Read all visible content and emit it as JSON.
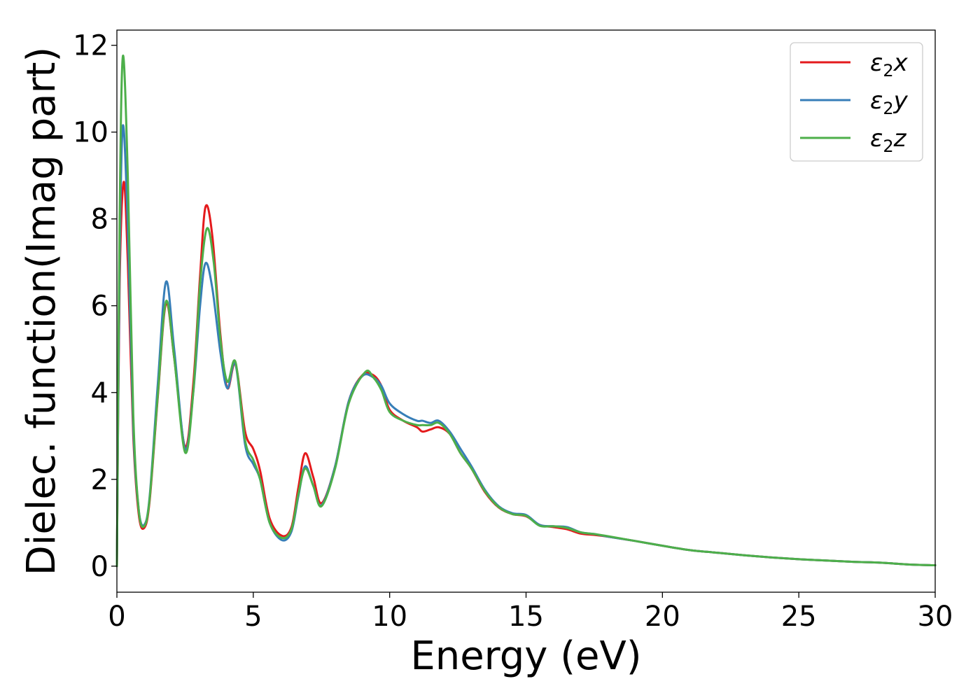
{
  "chart_data": {
    "type": "line",
    "title": "",
    "xlabel": "Energy (eV)",
    "ylabel": "Dielec. function(Imag part)",
    "xlim": [
      0,
      30
    ],
    "ylim": [
      -0.6,
      12.35
    ],
    "xticks": [
      0,
      5,
      10,
      15,
      20,
      25,
      30
    ],
    "yticks": [
      0,
      2,
      4,
      6,
      8,
      10,
      12
    ],
    "grid": false,
    "legend_position": "top-right",
    "series": [
      {
        "name": "ε2x",
        "legend": {
          "base": "ε",
          "sub": "2",
          "var": "x"
        },
        "color": "#e41a1c",
        "x": [
          0,
          0.1,
          0.25,
          0.4,
          0.6,
          0.8,
          1.0,
          1.2,
          1.5,
          1.8,
          2.1,
          2.5,
          2.8,
          3.05,
          3.25,
          3.5,
          3.8,
          4.05,
          4.35,
          4.7,
          5.0,
          5.25,
          5.6,
          6.05,
          6.4,
          6.65,
          6.9,
          7.2,
          7.5,
          8.0,
          8.5,
          9.0,
          9.4,
          9.7,
          10.0,
          10.5,
          11.0,
          11.2,
          11.5,
          11.8,
          12.2,
          12.6,
          13.0,
          13.5,
          14.0,
          14.5,
          15.0,
          15.5,
          16.0,
          16.5,
          17.0,
          17.5,
          18.0,
          19.0,
          20.0,
          21.0,
          22.0,
          23.0,
          24.0,
          25.0,
          26.0,
          27.0,
          28.0,
          29.0,
          30.0
        ],
        "y": [
          0.0,
          6.5,
          8.85,
          7.0,
          3.0,
          1.2,
          0.88,
          1.5,
          3.9,
          6.05,
          4.8,
          2.75,
          4.2,
          6.7,
          8.28,
          7.6,
          5.3,
          4.1,
          4.65,
          3.1,
          2.7,
          2.2,
          1.1,
          0.7,
          0.9,
          1.8,
          2.6,
          2.05,
          1.45,
          2.3,
          3.8,
          4.4,
          4.4,
          4.15,
          3.6,
          3.35,
          3.2,
          3.1,
          3.15,
          3.2,
          3.05,
          2.6,
          2.25,
          1.7,
          1.35,
          1.2,
          1.15,
          0.95,
          0.9,
          0.85,
          0.75,
          0.72,
          0.68,
          0.58,
          0.47,
          0.37,
          0.31,
          0.25,
          0.2,
          0.16,
          0.13,
          0.1,
          0.08,
          0.04,
          0.02
        ]
      },
      {
        "name": "ε2y",
        "legend": {
          "base": "ε",
          "sub": "2",
          "var": "y"
        },
        "color": "#377eb8",
        "x": [
          0,
          0.1,
          0.22,
          0.4,
          0.6,
          0.8,
          1.0,
          1.2,
          1.5,
          1.8,
          2.1,
          2.5,
          2.8,
          3.05,
          3.25,
          3.5,
          3.8,
          4.05,
          4.35,
          4.7,
          5.0,
          5.25,
          5.6,
          6.05,
          6.4,
          6.65,
          6.9,
          7.2,
          7.5,
          8.0,
          8.5,
          9.0,
          9.4,
          9.7,
          10.0,
          10.5,
          11.0,
          11.2,
          11.5,
          11.8,
          12.2,
          12.6,
          13.0,
          13.5,
          14.0,
          14.5,
          15.0,
          15.5,
          16.0,
          16.5,
          17.0,
          17.5,
          18.0,
          19.0,
          20.0,
          21.0,
          22.0,
          23.0,
          24.0,
          25.0,
          26.0,
          27.0,
          28.0,
          29.0,
          30.0
        ],
        "y": [
          0.0,
          7.0,
          10.15,
          7.8,
          3.2,
          1.3,
          0.95,
          1.6,
          4.2,
          6.55,
          5.0,
          2.7,
          4.0,
          6.0,
          6.98,
          6.4,
          4.9,
          4.1,
          4.65,
          2.8,
          2.35,
          2.0,
          1.0,
          0.6,
          0.8,
          1.6,
          2.3,
          1.85,
          1.4,
          2.3,
          3.8,
          4.38,
          4.35,
          4.15,
          3.75,
          3.5,
          3.35,
          3.35,
          3.3,
          3.35,
          3.1,
          2.7,
          2.3,
          1.75,
          1.38,
          1.22,
          1.18,
          0.95,
          0.92,
          0.9,
          0.78,
          0.74,
          0.68,
          0.58,
          0.47,
          0.37,
          0.31,
          0.25,
          0.2,
          0.16,
          0.13,
          0.1,
          0.08,
          0.04,
          0.02
        ]
      },
      {
        "name": "ε2z",
        "legend": {
          "base": "ε",
          "sub": "2",
          "var": "z"
        },
        "color": "#4daf4a",
        "x": [
          0,
          0.1,
          0.22,
          0.4,
          0.6,
          0.8,
          1.0,
          1.2,
          1.5,
          1.8,
          2.1,
          2.5,
          2.8,
          3.05,
          3.3,
          3.55,
          3.8,
          4.05,
          4.35,
          4.7,
          5.0,
          5.25,
          5.6,
          6.05,
          6.4,
          6.65,
          6.9,
          7.2,
          7.5,
          8.0,
          8.5,
          9.1,
          9.4,
          9.7,
          10.0,
          10.5,
          11.0,
          11.2,
          11.5,
          11.8,
          12.2,
          12.6,
          13.0,
          13.5,
          14.0,
          14.5,
          15.0,
          15.5,
          16.0,
          16.5,
          17.0,
          17.5,
          18.0,
          19.0,
          20.0,
          21.0,
          22.0,
          23.0,
          24.0,
          25.0,
          26.0,
          27.0,
          28.0,
          29.0,
          30.0
        ],
        "y": [
          0.0,
          8.0,
          11.75,
          9.0,
          3.5,
          1.3,
          0.92,
          1.55,
          3.95,
          6.1,
          4.8,
          2.62,
          4.0,
          6.5,
          7.78,
          7.0,
          5.2,
          4.25,
          4.7,
          2.9,
          2.45,
          2.0,
          1.0,
          0.65,
          0.85,
          1.65,
          2.25,
          1.85,
          1.38,
          2.25,
          3.75,
          4.47,
          4.35,
          4.05,
          3.55,
          3.35,
          3.25,
          3.25,
          3.25,
          3.3,
          3.05,
          2.6,
          2.25,
          1.72,
          1.36,
          1.2,
          1.16,
          0.93,
          0.92,
          0.88,
          0.78,
          0.74,
          0.69,
          0.58,
          0.47,
          0.37,
          0.31,
          0.25,
          0.2,
          0.16,
          0.13,
          0.1,
          0.08,
          0.04,
          0.02
        ]
      }
    ]
  }
}
